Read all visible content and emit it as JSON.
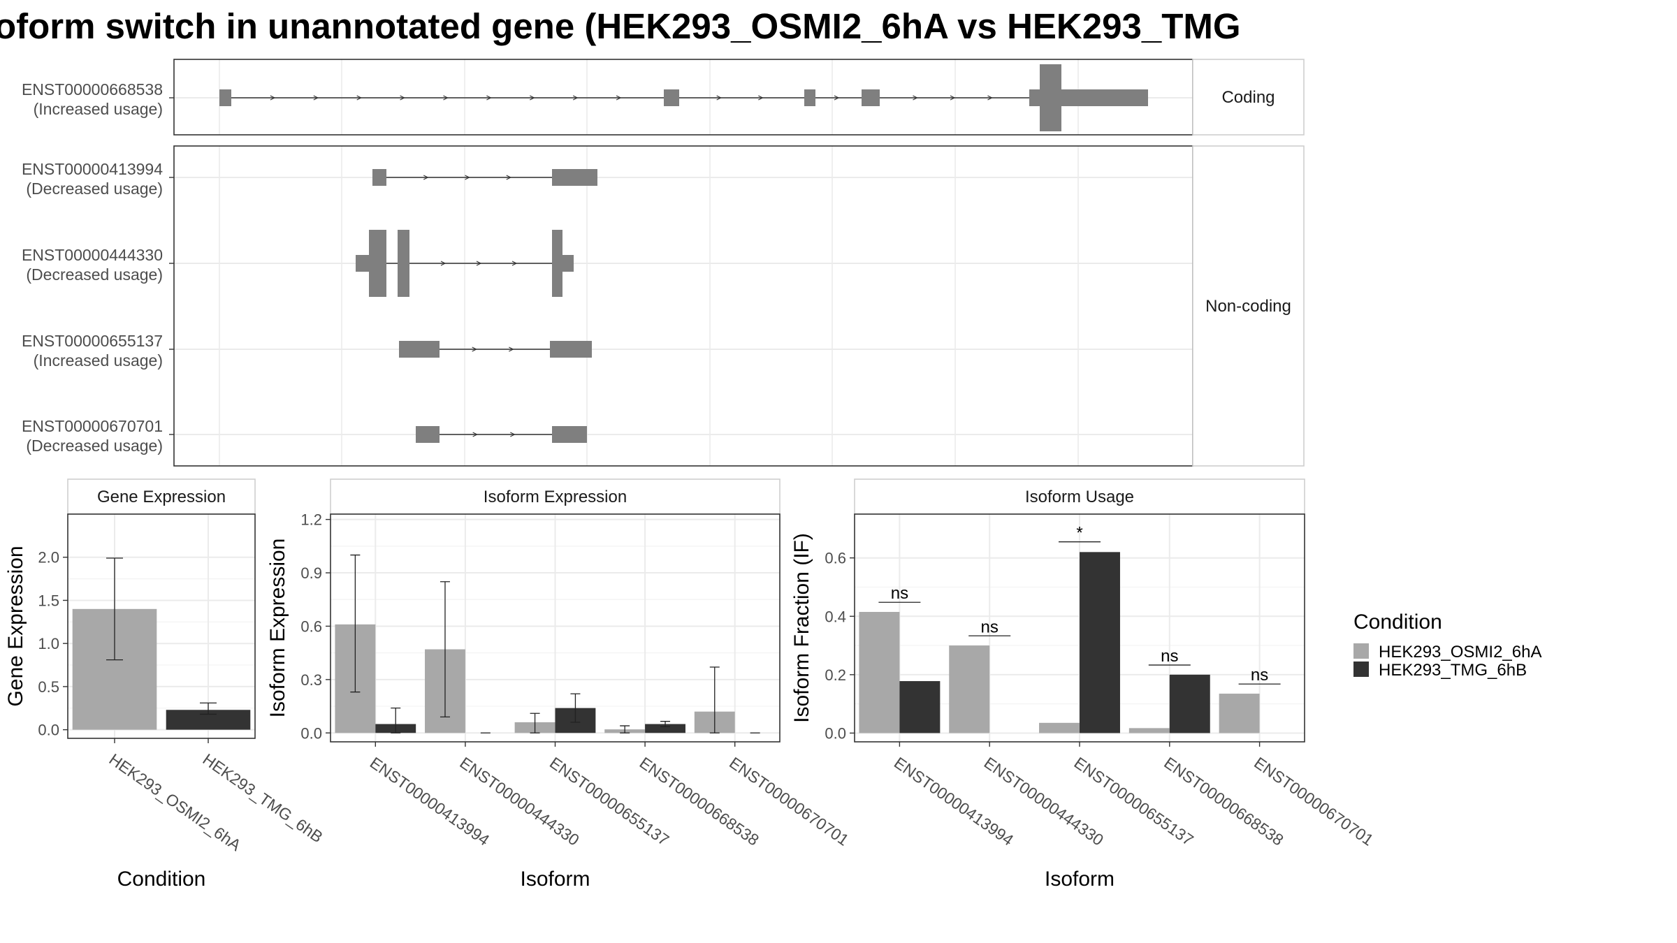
{
  "title": "oform switch in unannotated gene (HEK293_OSMI2_6hA vs HEK293_TMG",
  "colors": {
    "condition_a": "#a8a8a8",
    "condition_b": "#333333",
    "exon": "#7f7f7f",
    "grid": "#ebebeb",
    "panel_border": "#333333",
    "strip_border": "#cfcfcf",
    "tick_text": "#4d4d4d"
  },
  "structure": {
    "groups": [
      {
        "label": "Coding",
        "transcripts": [
          {
            "id": "ENST00000668538",
            "usage": "(Increased usage)"
          }
        ]
      },
      {
        "label": "Non-coding",
        "transcripts": [
          {
            "id": "ENST00000413994",
            "usage": "(Decreased usage)"
          },
          {
            "id": "ENST00000444330",
            "usage": "(Decreased usage)"
          },
          {
            "id": "ENST00000655137",
            "usage": "(Increased usage)"
          },
          {
            "id": "ENST00000670701",
            "usage": "(Decreased usage)"
          }
        ]
      }
    ]
  },
  "chart_data": [
    {
      "type": "bar",
      "panel": "Gene Expression",
      "xlabel": "Condition",
      "ylabel": "Gene Expression",
      "ylim": [
        -0.1,
        2.5
      ],
      "yticks": [
        "0.0",
        "0.5",
        "1.0",
        "1.5",
        "2.0"
      ],
      "categories": [
        "HEK293_OSMI2_6hA",
        "HEK293_TMG_6hB"
      ],
      "values": [
        1.4,
        0.23
      ],
      "error_low": [
        0.81,
        0.18
      ],
      "error_high": [
        1.99,
        0.31
      ]
    },
    {
      "type": "bar",
      "panel": "Isoform Expression",
      "xlabel": "Isoform",
      "ylabel": "Isoform Expression",
      "ylim": [
        -0.05,
        1.23
      ],
      "yticks": [
        "0.0",
        "0.3",
        "0.6",
        "0.9",
        "1.2"
      ],
      "categories": [
        "ENST00000413994",
        "ENST00000444330",
        "ENST00000655137",
        "ENST00000668538",
        "ENST00000670701"
      ],
      "series": [
        {
          "name": "HEK293_OSMI2_6hA",
          "values": [
            0.61,
            0.47,
            0.06,
            0.02,
            0.12
          ],
          "error_low": [
            0.23,
            0.09,
            0.0,
            0.0,
            0.0
          ],
          "error_high": [
            1.0,
            0.85,
            0.11,
            0.04,
            0.37
          ]
        },
        {
          "name": "HEK293_TMG_6hB",
          "values": [
            0.05,
            0.0,
            0.14,
            0.05,
            0.0
          ],
          "error_low": [
            0.0,
            0.0,
            0.06,
            0.035,
            0.0
          ],
          "error_high": [
            0.14,
            0.0,
            0.22,
            0.065,
            0.0
          ]
        }
      ]
    },
    {
      "type": "bar",
      "panel": "Isoform Usage",
      "xlabel": "Isoform",
      "ylabel": "Isoform Fraction (IF)",
      "ylim": [
        -0.03,
        0.75
      ],
      "yticks": [
        "0.0",
        "0.2",
        "0.4",
        "0.6"
      ],
      "categories": [
        "ENST00000413994",
        "ENST00000444330",
        "ENST00000655137",
        "ENST00000668538",
        "ENST00000670701"
      ],
      "series": [
        {
          "name": "HEK293_OSMI2_6hA",
          "values": [
            0.415,
            0.3,
            0.035,
            0.017,
            0.135
          ]
        },
        {
          "name": "HEK293_TMG_6hB",
          "values": [
            0.178,
            0.0,
            0.62,
            0.2,
            0.0
          ]
        }
      ],
      "significance": [
        "ns",
        "ns",
        "*",
        "ns",
        "ns"
      ],
      "significance_y": [
        0.448,
        0.333,
        0.655,
        0.233,
        0.168
      ]
    }
  ],
  "legend": {
    "title": "Condition",
    "items": [
      "HEK293_OSMI2_6hA",
      "HEK293_TMG_6hB"
    ]
  }
}
